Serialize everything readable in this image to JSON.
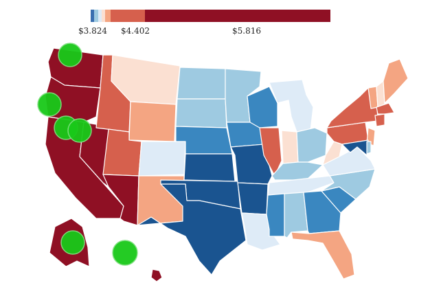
{
  "legend": {
    "colors": [
      "#3a6fb0",
      "#9ecae1",
      "#deebf7",
      "#fbe0d2",
      "#f4a582",
      "#d6604d",
      "#8f1024"
    ],
    "labels": [
      "$3.824",
      "$4.402",
      "$5.816"
    ]
  },
  "map": {
    "shading": {
      "WA": "#8f1024",
      "OR": "#8f1024",
      "CA": "#8f1024",
      "NV": "#8f1024",
      "AZ": "#8f1024",
      "ID": "#d6604d",
      "UT": "#d6604d",
      "MT": "#fbe0d2",
      "WY": "#f4a582",
      "CO": "#deebf7",
      "NM": "#f4a582",
      "ND": "#9ecae1",
      "SD": "#9ecae1",
      "NE": "#3a87c0",
      "KS": "#1a5490",
      "OK": "#1a5490",
      "TX": "#1a5490",
      "MN": "#9ecae1",
      "IA": "#3a87c0",
      "MO": "#1a5490",
      "AR": "#1a5490",
      "LA": "#deebf7",
      "WI": "#3a87c0",
      "IL": "#d6604d",
      "MI": "#deebf7",
      "IN": "#fbe0d2",
      "OH": "#9ecae1",
      "KY": "#9ecae1",
      "TN": "#deebf7",
      "MS": "#3a87c0",
      "AL": "#9ecae1",
      "GA": "#3a87c0",
      "FL": "#f4a582",
      "SC": "#3a87c0",
      "NC": "#9ecae1",
      "VA": "#deebf7",
      "WV": "#fbe0d2",
      "PA": "#d6604d",
      "NY": "#d6604d",
      "ME": "#f4a582",
      "VT": "#f4a582",
      "NH": "#fbe0d2",
      "MA": "#d6604d",
      "CT": "#d6604d",
      "NJ": "#f4a582",
      "MD": "#1a5490",
      "DE": "#9ecae1",
      "AK": "#8f1024",
      "HI": "#8f1024"
    },
    "marker_color": "#19c919",
    "marker_count": 6
  }
}
